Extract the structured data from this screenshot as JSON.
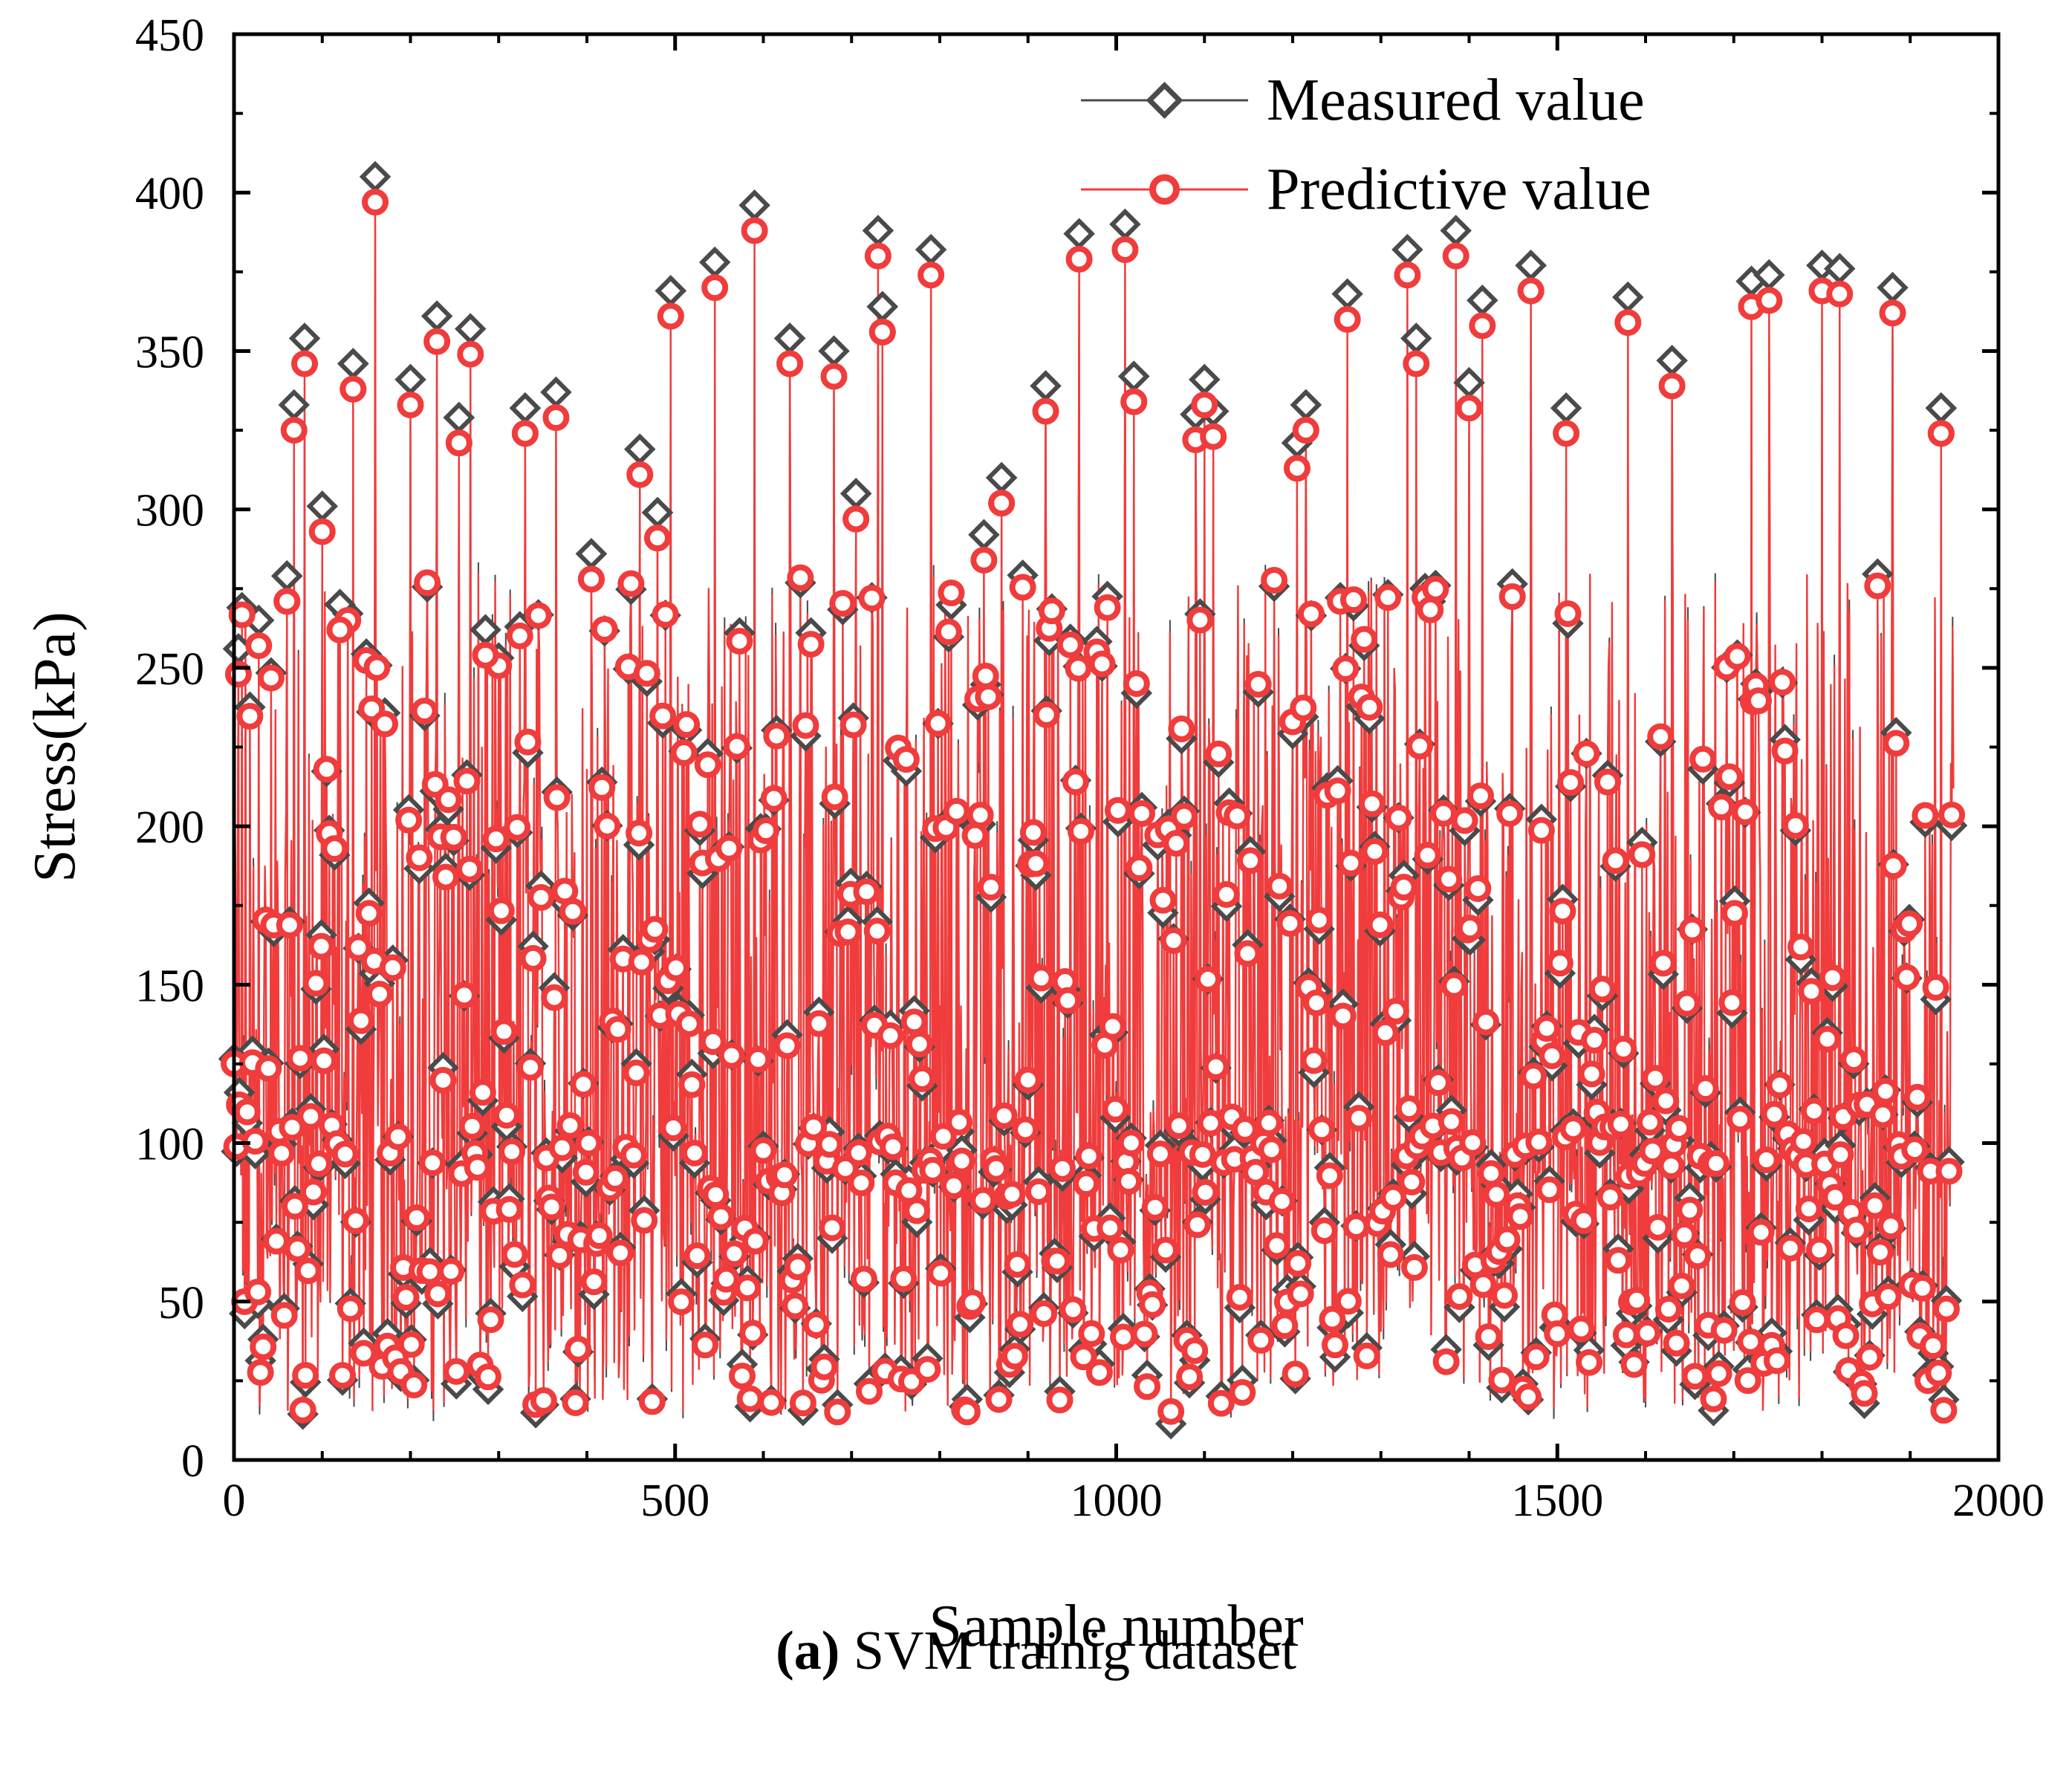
{
  "chart_data": {
    "type": "line",
    "title": "",
    "xlabel": "Sample number",
    "ylabel": "Stress(kPa)",
    "xlim": [
      0,
      2000
    ],
    "ylim": [
      0,
      450
    ],
    "xticks": [
      0,
      500,
      1000,
      1500,
      2000
    ],
    "yticks": [
      0,
      50,
      100,
      150,
      200,
      250,
      300,
      350,
      400,
      450
    ],
    "xtick_labels": [
      "0",
      "500",
      "1000",
      "1500",
      "2000"
    ],
    "ytick_labels": [
      "0",
      "50",
      "100",
      "150",
      "200",
      "250",
      "300",
      "350",
      "400",
      "450"
    ],
    "legend_position": "top-right",
    "grid": false,
    "sample_count": 1950,
    "series": [
      {
        "name": "Measured value",
        "color": "#4a4a4a",
        "marker": "diamond"
      },
      {
        "name": "Predictive value",
        "color": "#f03c3c",
        "marker": "circle"
      }
    ],
    "peaks": [
      [
        5,
        252
      ],
      [
        28,
        261
      ],
      [
        60,
        275
      ],
      [
        68,
        329
      ],
      [
        80,
        350
      ],
      [
        100,
        297
      ],
      [
        120,
        266
      ],
      [
        135,
        342
      ],
      [
        160,
        401
      ],
      [
        200,
        337
      ],
      [
        230,
        357
      ],
      [
        255,
        325
      ],
      [
        268,
        353
      ],
      [
        285,
        258
      ],
      [
        330,
        328
      ],
      [
        365,
        333
      ],
      [
        405,
        282
      ],
      [
        460,
        315
      ],
      [
        480,
        295
      ],
      [
        495,
        365
      ],
      [
        545,
        374
      ],
      [
        590,
        392
      ],
      [
        630,
        350
      ],
      [
        680,
        346
      ],
      [
        705,
        301
      ],
      [
        730,
        384
      ],
      [
        735,
        360
      ],
      [
        790,
        378
      ],
      [
        850,
        288
      ],
      [
        870,
        306
      ],
      [
        920,
        335
      ],
      [
        958,
        383
      ],
      [
        1010,
        386
      ],
      [
        1020,
        338
      ],
      [
        1090,
        326
      ],
      [
        1100,
        337
      ],
      [
        1110,
        327
      ],
      [
        1205,
        317
      ],
      [
        1215,
        329
      ],
      [
        1262,
        364
      ],
      [
        1330,
        378
      ],
      [
        1340,
        350
      ],
      [
        1385,
        384
      ],
      [
        1400,
        336
      ],
      [
        1415,
        362
      ],
      [
        1470,
        373
      ],
      [
        1510,
        328
      ],
      [
        1580,
        363
      ],
      [
        1630,
        343
      ],
      [
        1720,
        368
      ],
      [
        1740,
        370
      ],
      [
        1800,
        373
      ],
      [
        1820,
        372
      ],
      [
        1880,
        366
      ],
      [
        1935,
        328
      ]
    ],
    "caption_label": "(a)",
    "caption_text": " SVM trainig dataset"
  }
}
